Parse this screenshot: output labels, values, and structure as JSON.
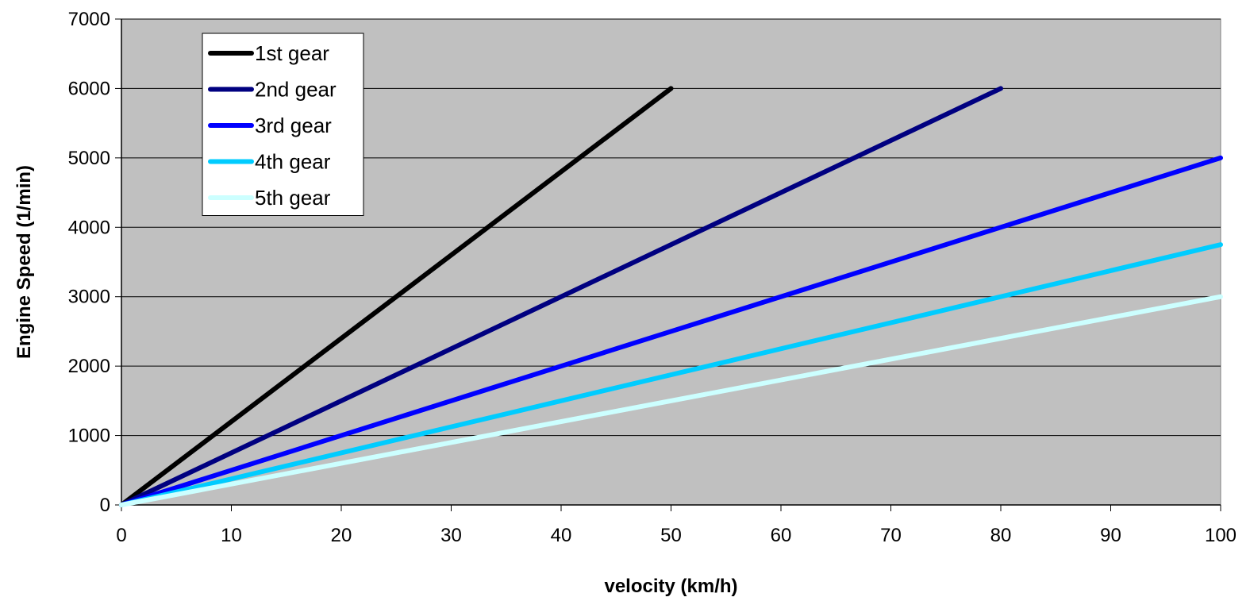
{
  "chart_data": {
    "type": "line",
    "title": "",
    "xlabel": "velocity (km/h)",
    "ylabel": "Engine Speed (1/min)",
    "xlim": [
      0,
      100
    ],
    "ylim": [
      0,
      7000
    ],
    "x_ticks": [
      0,
      10,
      20,
      30,
      40,
      50,
      60,
      70,
      80,
      90,
      100
    ],
    "y_ticks": [
      0,
      1000,
      2000,
      3000,
      4000,
      5000,
      6000,
      7000
    ],
    "grid": "horizontal",
    "plot_background": "#c0c0c0",
    "legend_position": "top-left",
    "series": [
      {
        "name": "1st gear",
        "color": "#000000",
        "x": [
          0,
          50
        ],
        "y": [
          0,
          6000
        ]
      },
      {
        "name": "2nd gear",
        "color": "#000080",
        "x": [
          0,
          80
        ],
        "y": [
          0,
          6000
        ]
      },
      {
        "name": "3rd gear",
        "color": "#0000ff",
        "x": [
          0,
          100
        ],
        "y": [
          0,
          5000
        ]
      },
      {
        "name": "4th gear",
        "color": "#00ccff",
        "x": [
          0,
          100
        ],
        "y": [
          0,
          3750
        ]
      },
      {
        "name": "5th gear",
        "color": "#ccffff",
        "x": [
          0,
          100
        ],
        "y": [
          0,
          3000
        ]
      }
    ]
  }
}
